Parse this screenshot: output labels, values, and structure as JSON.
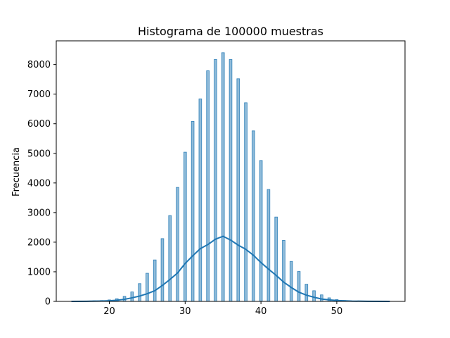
{
  "chart_data": {
    "type": "bar",
    "title": "Histograma de 100000 muestras",
    "xlabel": "",
    "ylabel": "Frecuencia",
    "xlim": [
      13,
      59
    ],
    "ylim": [
      0,
      8800
    ],
    "xticks": [
      20,
      30,
      40,
      50
    ],
    "yticks": [
      0,
      1000,
      2000,
      3000,
      4000,
      5000,
      6000,
      7000,
      8000
    ],
    "grid": false,
    "bar_color": "#1f77b4",
    "bar_alpha": 0.5,
    "bar_width": 0.35,
    "kde_color": "#1f77b4",
    "bars": [
      {
        "x": 15,
        "y": 2
      },
      {
        "x": 16,
        "y": 5
      },
      {
        "x": 17,
        "y": 10
      },
      {
        "x": 18,
        "y": 20
      },
      {
        "x": 19,
        "y": 30
      },
      {
        "x": 20,
        "y": 50
      },
      {
        "x": 21,
        "y": 90
      },
      {
        "x": 22,
        "y": 170
      },
      {
        "x": 23,
        "y": 320
      },
      {
        "x": 24,
        "y": 600
      },
      {
        "x": 25,
        "y": 950
      },
      {
        "x": 26,
        "y": 1400
      },
      {
        "x": 27,
        "y": 2120
      },
      {
        "x": 28,
        "y": 2900
      },
      {
        "x": 29,
        "y": 3850
      },
      {
        "x": 30,
        "y": 5040
      },
      {
        "x": 31,
        "y": 6080
      },
      {
        "x": 32,
        "y": 6840
      },
      {
        "x": 33,
        "y": 7790
      },
      {
        "x": 34,
        "y": 8170
      },
      {
        "x": 35,
        "y": 8400
      },
      {
        "x": 36,
        "y": 8170
      },
      {
        "x": 37,
        "y": 7520
      },
      {
        "x": 38,
        "y": 6710
      },
      {
        "x": 39,
        "y": 5760
      },
      {
        "x": 40,
        "y": 4760
      },
      {
        "x": 41,
        "y": 3780
      },
      {
        "x": 42,
        "y": 2850
      },
      {
        "x": 43,
        "y": 2060
      },
      {
        "x": 44,
        "y": 1350
      },
      {
        "x": 45,
        "y": 1010
      },
      {
        "x": 46,
        "y": 580
      },
      {
        "x": 47,
        "y": 360
      },
      {
        "x": 48,
        "y": 220
      },
      {
        "x": 49,
        "y": 120
      },
      {
        "x": 50,
        "y": 60
      },
      {
        "x": 51,
        "y": 30
      },
      {
        "x": 52,
        "y": 15
      },
      {
        "x": 53,
        "y": 8
      },
      {
        "x": 54,
        "y": 4
      },
      {
        "x": 55,
        "y": 2
      },
      {
        "x": 56,
        "y": 1
      },
      {
        "x": 57,
        "y": 1
      }
    ],
    "kde": {
      "x": [
        15,
        17,
        19,
        20,
        21,
        22,
        23,
        24,
        25,
        26,
        27,
        28,
        29,
        30,
        31,
        32,
        33,
        34,
        35,
        36,
        37,
        38,
        39,
        40,
        41,
        42,
        43,
        44,
        45,
        46,
        47,
        48,
        49,
        50,
        52,
        54,
        57
      ],
      "y": [
        0,
        3,
        12,
        20,
        40,
        70,
        120,
        180,
        260,
        360,
        540,
        740,
        960,
        1280,
        1540,
        1780,
        1920,
        2100,
        2200,
        2070,
        1900,
        1760,
        1560,
        1310,
        1090,
        880,
        650,
        470,
        310,
        210,
        140,
        80,
        50,
        30,
        10,
        3,
        0
      ]
    }
  }
}
